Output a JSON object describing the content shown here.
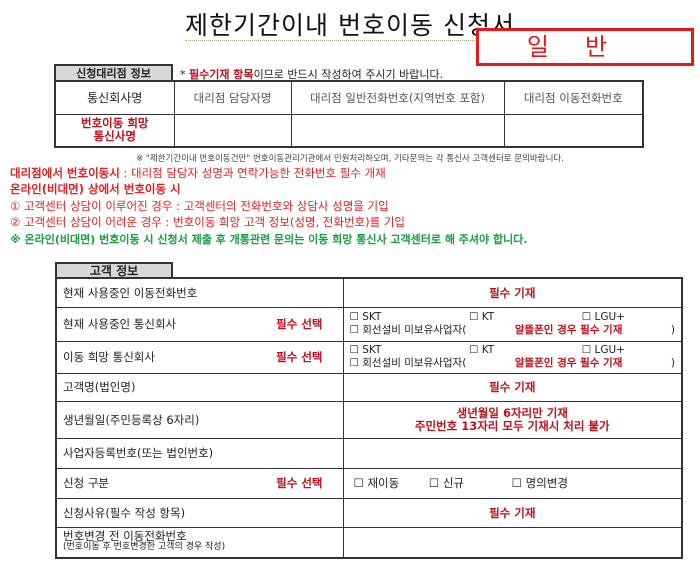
{
  "title": "제한기간이내 번호이동 신청서",
  "badge": "일반",
  "agency": {
    "tab": "신청대리점 정보",
    "notice_prefix": "* ",
    "notice_red": "필수기재 항목",
    "notice_rest": "이므로 반드시 작성하여 주시기 바랍니다.",
    "headers": [
      "통신회사명",
      "대리점 담당자명",
      "대리점 일반전화번호(지역번호 포함)",
      "대리점 이동전화번호"
    ],
    "row_label": "번호이동 희망 통신사명"
  },
  "footnote": "※ \"제한기간이내 번호이동건만\" 번호이동관리기관에서 민원처리하오며, 기타문의는 각 통신사 고객센터로 문의바랍니다.",
  "notes": {
    "l1_bold": "대리점에서 번호이동시",
    "l1_rest": " : 대리점 담당자 성명과 연락가능한 전화번호 필수 개재",
    "l2": "온라인(비대면) 상에서 번호이동 시",
    "l3": "① 고객센터 상담이 이루어진 경우 : 고객센터의 전화번호와 상담사 성명을 기입",
    "l4": "② 고객센터 상담이 어려운 경우 : 번호이동 희망 고객 정보(성명, 전화번호)를 기입",
    "l5": "※ 온라인(비대면) 번호이동 시 신청서 제출 후 개통관련 문의는 이동 희망 통신사 고객센터로 해 주셔야 합니다."
  },
  "customer": {
    "tab": "고객 정보",
    "rows": [
      {
        "label": "현재 사용중인 이동전화번호",
        "value": "필수 기재"
      },
      {
        "label": "현재 사용중인 통신회사",
        "tag": "필수 선택"
      },
      {
        "label": "이동 희망 통신회사",
        "tag": "필수 선택"
      },
      {
        "label": "고객명(법인명)",
        "value": "필수 기재"
      },
      {
        "label": "생년월일(주민등록상 6자리)",
        "value1": "생년월일 6자리만 기재",
        "value2": "주민번호 13자리 모두 기재시 처리 불가"
      },
      {
        "label": "사업자등록번호(또는 법인번호)"
      },
      {
        "label": "신청 구분",
        "tag": "필수 선택",
        "options": [
          "재이동",
          "신규",
          "명의변경"
        ]
      },
      {
        "label": "신청사유(필수 작성 항목)",
        "value": "필수 기재"
      },
      {
        "label": "번호변경 전 이동전화번호",
        "sub": "(번호이동 후 번호변경한 고객의 경우 작성)"
      }
    ],
    "carriers": [
      "SKT",
      "KT",
      "LGU+"
    ],
    "mvno": "회선설비 미보유사업자(",
    "mvno_note": "알뜰폰인 경우 필수 기재",
    "mvno_close": ")"
  },
  "colors": {
    "red": "#c0101c",
    "badge": "#e81818",
    "green": "#17a040"
  }
}
